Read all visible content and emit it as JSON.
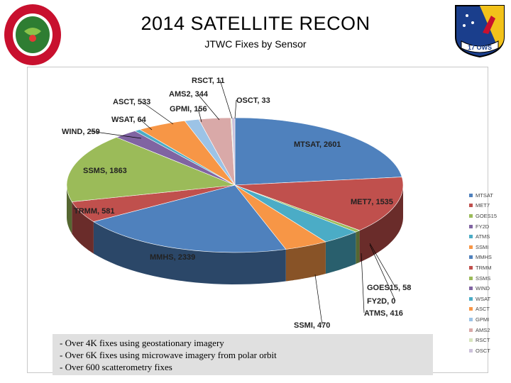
{
  "header": {
    "title": "2014 SATELLITE RECON",
    "subtitle": "JTWC Fixes by Sensor"
  },
  "logos": {
    "left": {
      "text_top": "JOINT TYPHOON WARNING CENTER",
      "text_bottom": "PEARL HARBOR HAWAII",
      "color": "#c8102e"
    },
    "right": {
      "text": "17 OWS",
      "color": "#1a3e8c",
      "accent": "#f2c21a"
    }
  },
  "chart_data": {
    "type": "pie",
    "title": "",
    "slices": [
      {
        "name": "MTSAT",
        "value": 2601,
        "label": "MTSAT, 2601",
        "color": "#4f81bd"
      },
      {
        "name": "MET7",
        "value": 1535,
        "label": "MET7, 1535",
        "color": "#c0504d"
      },
      {
        "name": "GOES15",
        "value": 58,
        "label": "GOES15, 58",
        "color": "#9bbb59"
      },
      {
        "name": "FY2D",
        "value": 0,
        "label": "FY2D, 0",
        "color": "#8064a2"
      },
      {
        "name": "ATMS",
        "value": 416,
        "label": "ATMS, 416",
        "color": "#4bacc6"
      },
      {
        "name": "SSMI",
        "value": 470,
        "label": "SSMI, 470",
        "color": "#f79646"
      },
      {
        "name": "MMHS",
        "value": 2339,
        "label": "MMHS, 2339",
        "color": "#4f81bd"
      },
      {
        "name": "TRMM",
        "value": 581,
        "label": "TRMM, 581",
        "color": "#c0504d"
      },
      {
        "name": "SSMS",
        "value": 1863,
        "label": "SSMS, 1863",
        "color": "#9bbb59"
      },
      {
        "name": "WIND",
        "value": 259,
        "label": "WIND, 259",
        "color": "#8064a2"
      },
      {
        "name": "WSAT",
        "value": 64,
        "label": "WSAT, 64",
        "color": "#4bacc6"
      },
      {
        "name": "ASCT",
        "value": 533,
        "label": "ASCT, 533",
        "color": "#f79646"
      },
      {
        "name": "GPMI",
        "value": 156,
        "label": "GPMI, 156",
        "color": "#9cc3e6"
      },
      {
        "name": "AMS2",
        "value": 344,
        "label": "AMS2, 344",
        "color": "#d9a9a8"
      },
      {
        "name": "RSCT",
        "value": 11,
        "label": "RSCT, 11",
        "color": "#d7e4bd"
      },
      {
        "name": "OSCT",
        "value": 33,
        "label": "OSCT, 33",
        "color": "#ccc1da"
      }
    ],
    "legend": {
      "placement": "right",
      "entries": [
        "MTSAT",
        "MET7",
        "GOES15",
        "FY2D",
        "ATMS",
        "SSMI",
        "MMHS",
        "TRMM",
        "SSMS",
        "WIND",
        "WSAT",
        "ASCT",
        "GPMI",
        "AMS2",
        "RSCT",
        "OSCT"
      ]
    }
  },
  "notes": [
    "- Over 4K fixes using geostationary imagery",
    "- Over 6K fixes using microwave imagery from polar orbit",
    "- Over 600 scatterometry fixes"
  ]
}
